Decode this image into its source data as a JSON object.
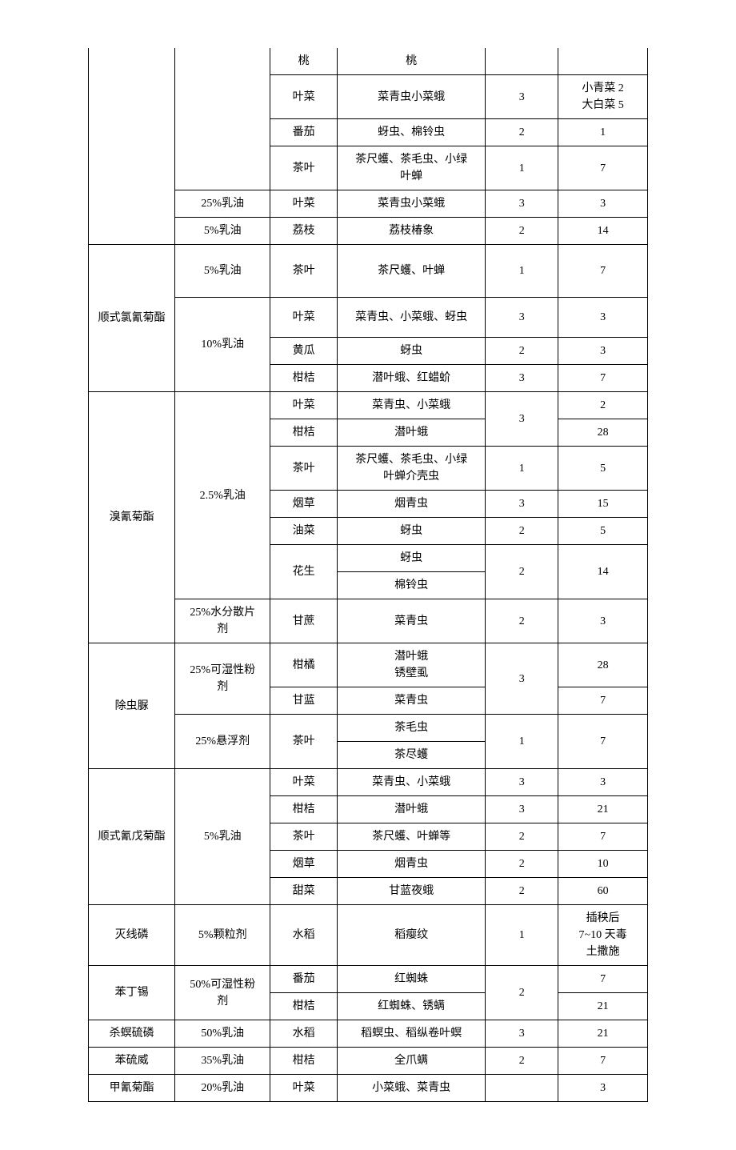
{
  "rows": [
    {
      "c1": "",
      "c2": "",
      "c3": "桃",
      "c4": "桃",
      "c5": "",
      "c6": ""
    },
    {
      "c1": "",
      "c2": "",
      "c3": "叶菜",
      "c4": "菜青虫小菜蛾",
      "c5": "3",
      "c6": "小青菜 2\n大白菜 5"
    },
    {
      "c1": "",
      "c2": "",
      "c3": "番茄",
      "c4": "蚜虫、棉铃虫",
      "c5": "2",
      "c6": "1"
    },
    {
      "c1": "",
      "c2": "",
      "c3": "茶叶",
      "c4": "茶尺蠖、茶毛虫、小绿\n叶蝉",
      "c5": "1",
      "c6": "7"
    },
    {
      "c1": "",
      "c2": "25%乳油",
      "c3": "叶菜",
      "c4": "菜青虫小菜蛾",
      "c5": "3",
      "c6": "3"
    },
    {
      "c1": "",
      "c2": "5%乳油",
      "c3": "荔枝",
      "c4": "荔枝椿象",
      "c5": "2",
      "c6": "14"
    },
    {
      "c1": "顺式氯氰菊酯",
      "c2": "5%乳油",
      "c3": "茶叶",
      "c4": "茶尺蠖、叶蝉",
      "c5": "1",
      "c6": "7"
    },
    {
      "c1": "",
      "c2": "10%乳油",
      "c3": "叶菜",
      "c4": "菜青虫、小菜蛾、蚜虫",
      "c5": "3",
      "c6": "3"
    },
    {
      "c1": "",
      "c2": "",
      "c3": "黄瓜",
      "c4": "蚜虫",
      "c5": "2",
      "c6": "3"
    },
    {
      "c1": "",
      "c2": "",
      "c3": "柑桔",
      "c4": "潜叶蛾、红蜡蚧",
      "c5": "3",
      "c6": "7"
    },
    {
      "c1": "溴氰菊酯",
      "c2": "2.5%乳油",
      "c3": "叶菜",
      "c4": "菜青虫、小菜蛾",
      "c5": "3",
      "c6": "2"
    },
    {
      "c1": "",
      "c2": "",
      "c3": "柑桔",
      "c4": "潜叶蛾",
      "c5": "",
      "c6": "28"
    },
    {
      "c1": "",
      "c2": "",
      "c3": "茶叶",
      "c4": "茶尺蠖、茶毛虫、小绿\n叶蝉介壳虫",
      "c5": "1",
      "c6": "5"
    },
    {
      "c1": "",
      "c2": "",
      "c3": "烟草",
      "c4": "烟青虫",
      "c5": "3",
      "c6": "15"
    },
    {
      "c1": "",
      "c2": "",
      "c3": "油菜",
      "c4": "蚜虫",
      "c5": "2",
      "c6": "5"
    },
    {
      "c1": "",
      "c2": "",
      "c3": "花生",
      "c4": "蚜虫",
      "c5": "2",
      "c6": "14"
    },
    {
      "c1": "",
      "c2": "",
      "c3": "",
      "c4": "棉铃虫",
      "c5": "",
      "c6": ""
    },
    {
      "c1": "",
      "c2": "25%水分散片\n剂",
      "c3": "甘蔗",
      "c4": "菜青虫",
      "c5": "2",
      "c6": "3"
    },
    {
      "c1": "除虫脲",
      "c2": "25%可湿性粉\n剂",
      "c3": "柑橘",
      "c4": "潜叶蛾\n锈壁虱",
      "c5": "3",
      "c6": "28"
    },
    {
      "c1": "",
      "c2": "",
      "c3": "甘蓝",
      "c4": "菜青虫",
      "c5": "",
      "c6": "7"
    },
    {
      "c1": "",
      "c2": "25%悬浮剂",
      "c3": "茶叶",
      "c4": "茶毛虫",
      "c5": "1",
      "c6": "7"
    },
    {
      "c1": "",
      "c2": "",
      "c3": "",
      "c4": "茶尽蠖",
      "c5": "",
      "c6": ""
    },
    {
      "c1": "顺式氰戊菊酯",
      "c2": "5%乳油",
      "c3": "叶菜",
      "c4": "菜青虫、小菜蛾",
      "c5": "3",
      "c6": "3"
    },
    {
      "c1": "",
      "c2": "",
      "c3": "柑桔",
      "c4": "潜叶蛾",
      "c5": "3",
      "c6": "21"
    },
    {
      "c1": "",
      "c2": "",
      "c3": "茶叶",
      "c4": "茶尺蠖、叶蝉等",
      "c5": "2",
      "c6": "7"
    },
    {
      "c1": "",
      "c2": "",
      "c3": "烟草",
      "c4": "烟青虫",
      "c5": "2",
      "c6": "10"
    },
    {
      "c1": "",
      "c2": "",
      "c3": "甜菜",
      "c4": "甘蓝夜蛾",
      "c5": "2",
      "c6": "60"
    },
    {
      "c1": "灭线磷",
      "c2": "5%颗粒剂",
      "c3": "水稻",
      "c4": "稻瘿纹",
      "c5": "1",
      "c6": "插秧后\n7~10 天毒\n土撒施"
    },
    {
      "c1": "苯丁锡",
      "c2": "50%可湿性粉\n剂",
      "c3": "番茄",
      "c4": "红蜘蛛",
      "c5": "2",
      "c6": "7"
    },
    {
      "c1": "",
      "c2": "",
      "c3": "柑桔",
      "c4": "红蜘蛛、锈螨",
      "c5": "",
      "c6": "21"
    },
    {
      "c1": "杀螟硫磷",
      "c2": "50%乳油",
      "c3": "水稻",
      "c4": "稻螟虫、稻纵卷叶螟",
      "c5": "3",
      "c6": "21"
    },
    {
      "c1": "苯硫威",
      "c2": "35%乳油",
      "c3": "柑桔",
      "c4": "全爪螨",
      "c5": "2",
      "c6": "7"
    },
    {
      "c1": "甲氰菊酯",
      "c2": "20%乳油",
      "c3": "叶菜",
      "c4": "小菜蛾、菜青虫",
      "c5": "",
      "c6": "3"
    }
  ],
  "layout": [
    {
      "cells": [
        {
          "col": 1,
          "rs": 6,
          "noTop": true
        },
        {
          "col": 2,
          "rs": 4,
          "noTop": true
        },
        {
          "col": 3,
          "noTop": true
        },
        {
          "col": 4,
          "noTop": true
        },
        {
          "col": 5,
          "noTop": true
        },
        {
          "col": 6,
          "noTop": true
        }
      ],
      "d": 0
    },
    {
      "cells": [
        {
          "col": 3
        },
        {
          "col": 4
        },
        {
          "col": 5
        },
        {
          "col": 6
        }
      ],
      "d": 1
    },
    {
      "cells": [
        {
          "col": 3
        },
        {
          "col": 4
        },
        {
          "col": 5
        },
        {
          "col": 6
        }
      ],
      "d": 2
    },
    {
      "cells": [
        {
          "col": 3
        },
        {
          "col": 4
        },
        {
          "col": 5
        },
        {
          "col": 6
        }
      ],
      "d": 3
    },
    {
      "cells": [
        {
          "col": 2
        },
        {
          "col": 3
        },
        {
          "col": 4
        },
        {
          "col": 5
        },
        {
          "col": 6
        }
      ],
      "d": 4
    },
    {
      "cells": [
        {
          "col": 2
        },
        {
          "col": 3
        },
        {
          "col": 4
        },
        {
          "col": 5
        },
        {
          "col": 6
        }
      ],
      "d": 5
    },
    {
      "cells": [
        {
          "col": 1,
          "rs": 4
        },
        {
          "col": 2,
          "pad": "22px 4px"
        },
        {
          "col": 3
        },
        {
          "col": 4
        },
        {
          "col": 5
        },
        {
          "col": 6
        }
      ],
      "d": 6
    },
    {
      "cells": [
        {
          "col": 2,
          "rs": 3
        },
        {
          "col": 3,
          "pad": "14px 4px"
        },
        {
          "col": 4
        },
        {
          "col": 5
        },
        {
          "col": 6
        }
      ],
      "d": 7
    },
    {
      "cells": [
        {
          "col": 3
        },
        {
          "col": 4
        },
        {
          "col": 5
        },
        {
          "col": 6
        }
      ],
      "d": 8
    },
    {
      "cells": [
        {
          "col": 3
        },
        {
          "col": 4
        },
        {
          "col": 5
        },
        {
          "col": 6
        }
      ],
      "d": 9
    },
    {
      "cells": [
        {
          "col": 1,
          "rs": 8
        },
        {
          "col": 2,
          "rs": 7
        },
        {
          "col": 3
        },
        {
          "col": 4
        },
        {
          "col": 5,
          "rs": 2
        },
        {
          "col": 6
        }
      ],
      "d": 10
    },
    {
      "cells": [
        {
          "col": 3
        },
        {
          "col": 4
        },
        {
          "col": 6
        }
      ],
      "d": 11
    },
    {
      "cells": [
        {
          "col": 3
        },
        {
          "col": 4
        },
        {
          "col": 5
        },
        {
          "col": 6
        }
      ],
      "d": 12
    },
    {
      "cells": [
        {
          "col": 3
        },
        {
          "col": 4
        },
        {
          "col": 5
        },
        {
          "col": 6
        }
      ],
      "d": 13
    },
    {
      "cells": [
        {
          "col": 3
        },
        {
          "col": 4
        },
        {
          "col": 5
        },
        {
          "col": 6
        }
      ],
      "d": 14
    },
    {
      "cells": [
        {
          "col": 3,
          "rs": 2
        },
        {
          "col": 4
        },
        {
          "col": 5,
          "rs": 2
        },
        {
          "col": 6,
          "rs": 2
        }
      ],
      "d": 15
    },
    {
      "cells": [
        {
          "col": 4
        }
      ],
      "d": 16
    },
    {
      "cells": [
        {
          "col": 2
        },
        {
          "col": 3
        },
        {
          "col": 4
        },
        {
          "col": 5
        },
        {
          "col": 6
        }
      ],
      "d": 17
    },
    {
      "cells": [
        {
          "col": 1,
          "rs": 4
        },
        {
          "col": 2,
          "rs": 2
        },
        {
          "col": 3
        },
        {
          "col": 4
        },
        {
          "col": 5,
          "rs": 2
        },
        {
          "col": 6
        }
      ],
      "d": 18
    },
    {
      "cells": [
        {
          "col": 3
        },
        {
          "col": 4
        },
        {
          "col": 6
        }
      ],
      "d": 19
    },
    {
      "cells": [
        {
          "col": 2,
          "rs": 2
        },
        {
          "col": 3,
          "rs": 2
        },
        {
          "col": 4
        },
        {
          "col": 5,
          "rs": 2
        },
        {
          "col": 6,
          "rs": 2
        }
      ],
      "d": 20
    },
    {
      "cells": [
        {
          "col": 4
        }
      ],
      "d": 21
    },
    {
      "cells": [
        {
          "col": 1,
          "rs": 5
        },
        {
          "col": 2,
          "rs": 5
        },
        {
          "col": 3
        },
        {
          "col": 4
        },
        {
          "col": 5
        },
        {
          "col": 6
        }
      ],
      "d": 22
    },
    {
      "cells": [
        {
          "col": 3
        },
        {
          "col": 4
        },
        {
          "col": 5
        },
        {
          "col": 6
        }
      ],
      "d": 23
    },
    {
      "cells": [
        {
          "col": 3
        },
        {
          "col": 4
        },
        {
          "col": 5
        },
        {
          "col": 6
        }
      ],
      "d": 24
    },
    {
      "cells": [
        {
          "col": 3
        },
        {
          "col": 4
        },
        {
          "col": 5
        },
        {
          "col": 6
        }
      ],
      "d": 25
    },
    {
      "cells": [
        {
          "col": 3
        },
        {
          "col": 4
        },
        {
          "col": 5
        },
        {
          "col": 6
        }
      ],
      "d": 26
    },
    {
      "cells": [
        {
          "col": 1
        },
        {
          "col": 2
        },
        {
          "col": 3
        },
        {
          "col": 4
        },
        {
          "col": 5
        },
        {
          "col": 6
        }
      ],
      "d": 27
    },
    {
      "cells": [
        {
          "col": 1,
          "rs": 2
        },
        {
          "col": 2,
          "rs": 2
        },
        {
          "col": 3
        },
        {
          "col": 4
        },
        {
          "col": 5,
          "rs": 2
        },
        {
          "col": 6
        }
      ],
      "d": 28
    },
    {
      "cells": [
        {
          "col": 3
        },
        {
          "col": 4
        },
        {
          "col": 6
        }
      ],
      "d": 29
    },
    {
      "cells": [
        {
          "col": 1
        },
        {
          "col": 2
        },
        {
          "col": 3
        },
        {
          "col": 4
        },
        {
          "col": 5
        },
        {
          "col": 6
        }
      ],
      "d": 30
    },
    {
      "cells": [
        {
          "col": 1
        },
        {
          "col": 2
        },
        {
          "col": 3
        },
        {
          "col": 4
        },
        {
          "col": 5
        },
        {
          "col": 6
        }
      ],
      "d": 31
    },
    {
      "cells": [
        {
          "col": 1
        },
        {
          "col": 2
        },
        {
          "col": 3
        },
        {
          "col": 4
        },
        {
          "col": 5
        },
        {
          "col": 6
        }
      ],
      "d": 32
    }
  ]
}
